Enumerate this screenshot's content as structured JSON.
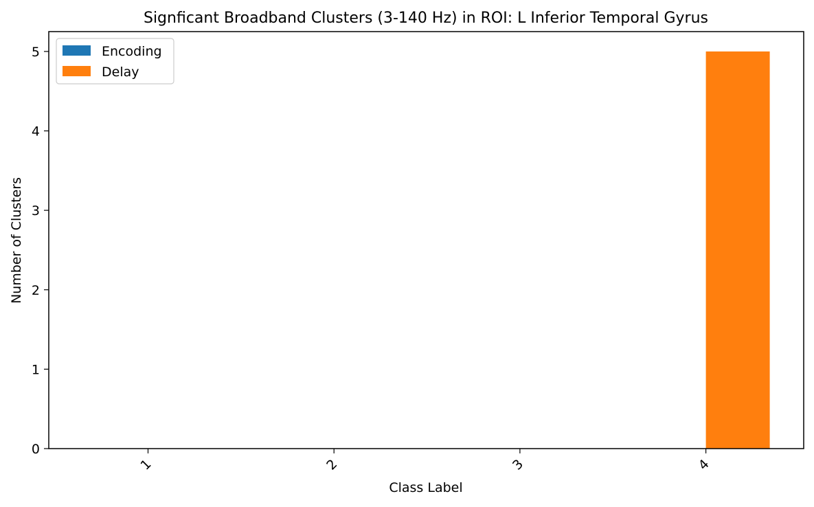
{
  "chart_data": {
    "type": "bar",
    "title": "Signficant Broadband Clusters (3-140 Hz) in ROI: L Inferior Temporal Gyrus",
    "xlabel": "Class Label",
    "ylabel": "Number of Clusters",
    "categories": [
      "1",
      "2",
      "3",
      "4"
    ],
    "series": [
      {
        "name": "Encoding",
        "values": [
          0,
          0,
          0,
          0
        ],
        "color": "#1f77b4"
      },
      {
        "name": "Delay",
        "values": [
          0,
          0,
          0,
          5
        ],
        "color": "#ff7f0e"
      }
    ],
    "ylim": [
      0,
      5.25
    ],
    "yticks": [
      "0",
      "1",
      "2",
      "3",
      "4",
      "5"
    ],
    "legend": "top-left",
    "grid": false
  }
}
